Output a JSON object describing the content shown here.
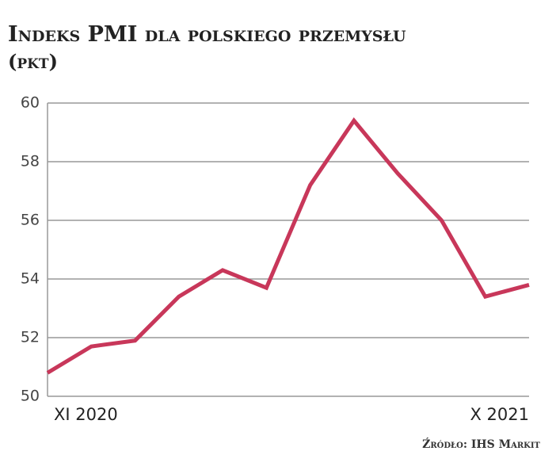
{
  "chart_data": {
    "type": "line",
    "title": "Indeks PMI dla polskiego przemysłu",
    "subtitle": "(pkt)",
    "source": "Źródło: IHS Markit",
    "categories": [
      "XI 2020",
      null,
      null,
      null,
      null,
      null,
      null,
      null,
      null,
      null,
      null,
      "X 2021"
    ],
    "values": [
      50.8,
      51.7,
      51.9,
      53.4,
      54.3,
      53.7,
      57.2,
      59.4,
      57.6,
      56.0,
      53.4,
      53.8
    ],
    "color": "#c8375a",
    "ylim": [
      50,
      60
    ],
    "yticks": [
      50,
      52,
      54,
      56,
      58,
      60
    ],
    "grid": true
  }
}
